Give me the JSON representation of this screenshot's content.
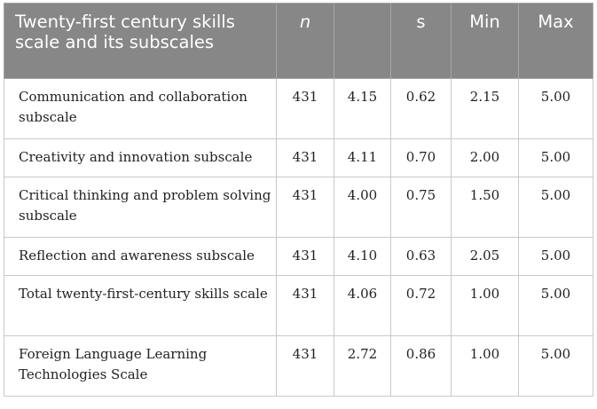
{
  "table": {
    "headers": [
      "Twenty-first century skills scale and its subscales",
      "n",
      "",
      "s",
      "Min",
      "Max"
    ],
    "rows": [
      {
        "label": "Communication and collaboration subscale",
        "n": "431",
        "mean": "4.15",
        "s": "0.62",
        "min": "2.15",
        "max": "5.00"
      },
      {
        "label": "Creativity and innovation subscale",
        "n": "431",
        "mean": "4.11",
        "s": "0.70",
        "min": "2.00",
        "max": "5.00"
      },
      {
        "label": "Critical thinking and problem solving subscale",
        "n": "431",
        "mean": "4.00",
        "s": "0.75",
        "min": "1.50",
        "max": "5.00"
      },
      {
        "label": "Reflection and awareness subscale",
        "n": "431",
        "mean": "4.10",
        "s": "0.63",
        "min": "2.05",
        "max": "5.00"
      },
      {
        "label": "Total twenty-first-century skills scale",
        "n": "431",
        "mean": "4.06",
        "s": "0.72",
        "min": "1.00",
        "max": "5.00"
      },
      {
        "label": "Foreign Language Learning Technologies Scale",
        "n": "431",
        "mean": "2.72",
        "s": "0.86",
        "min": "1.00",
        "max": "5.00"
      }
    ]
  }
}
